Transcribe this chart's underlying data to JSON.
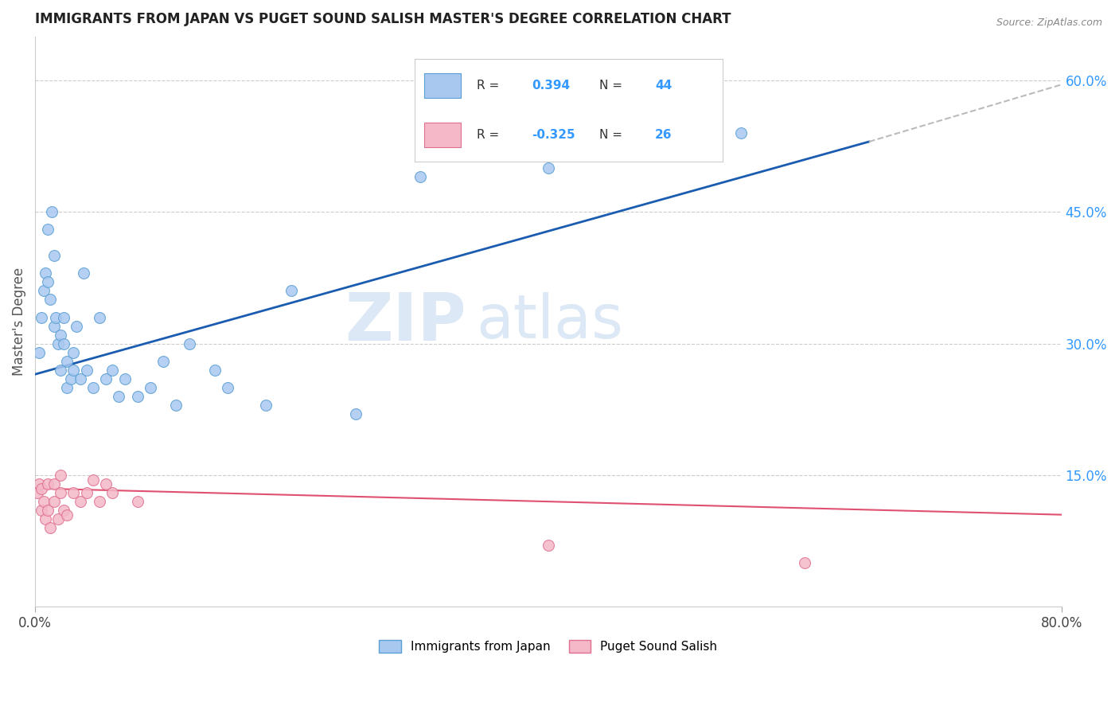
{
  "title": "IMMIGRANTS FROM JAPAN VS PUGET SOUND SALISH MASTER'S DEGREE CORRELATION CHART",
  "source_text": "Source: ZipAtlas.com",
  "ylabel": "Master's Degree",
  "xlim": [
    0.0,
    80.0
  ],
  "ylim": [
    0.0,
    65.0
  ],
  "ytick_right_labels": [
    "15.0%",
    "30.0%",
    "45.0%",
    "60.0%"
  ],
  "ytick_right_values": [
    15.0,
    30.0,
    45.0,
    60.0
  ],
  "blue_color": "#a8c8f0",
  "blue_edge": "#5a9fd4",
  "pink_color": "#f4b8c8",
  "pink_edge": "#e07090",
  "trend_blue_color": "#1a5cb0",
  "trend_pink_color": "#e05070",
  "trend_dashed_color": "#bbbbbb",
  "background_color": "#ffffff",
  "watermark_color": "#dce8f5",
  "legend_label_blue": "Immigrants from Japan",
  "legend_label_pink": "Puget Sound Salish",
  "blue_scatter_x": [
    0.3,
    0.5,
    0.7,
    0.8,
    1.0,
    1.0,
    1.2,
    1.3,
    1.5,
    1.5,
    1.6,
    1.8,
    2.0,
    2.0,
    2.2,
    2.2,
    2.5,
    2.5,
    2.8,
    3.0,
    3.0,
    3.2,
    3.5,
    3.8,
    4.0,
    4.5,
    5.0,
    5.5,
    6.0,
    6.5,
    7.0,
    8.0,
    9.0,
    10.0,
    11.0,
    12.0,
    14.0,
    15.0,
    18.0,
    20.0,
    25.0,
    30.0,
    40.0,
    55.0
  ],
  "blue_scatter_y": [
    29.0,
    33.0,
    36.0,
    38.0,
    43.0,
    37.0,
    35.0,
    45.0,
    40.0,
    32.0,
    33.0,
    30.0,
    31.0,
    27.0,
    30.0,
    33.0,
    28.0,
    25.0,
    26.0,
    29.0,
    27.0,
    32.0,
    26.0,
    38.0,
    27.0,
    25.0,
    33.0,
    26.0,
    27.0,
    24.0,
    26.0,
    24.0,
    25.0,
    28.0,
    23.0,
    30.0,
    27.0,
    25.0,
    23.0,
    36.0,
    22.0,
    49.0,
    50.0,
    54.0
  ],
  "pink_scatter_x": [
    0.2,
    0.3,
    0.5,
    0.5,
    0.7,
    0.8,
    1.0,
    1.0,
    1.2,
    1.5,
    1.5,
    1.8,
    2.0,
    2.0,
    2.2,
    2.5,
    3.0,
    3.5,
    4.0,
    4.5,
    5.0,
    5.5,
    6.0,
    8.0,
    40.0,
    60.0
  ],
  "pink_scatter_y": [
    13.0,
    14.0,
    11.0,
    13.5,
    12.0,
    10.0,
    14.0,
    11.0,
    9.0,
    14.0,
    12.0,
    10.0,
    15.0,
    13.0,
    11.0,
    10.5,
    13.0,
    12.0,
    13.0,
    14.5,
    12.0,
    14.0,
    13.0,
    12.0,
    7.0,
    5.0
  ],
  "blue_trend_x0": 0.0,
  "blue_trend_y0": 26.5,
  "blue_trend_x1": 65.0,
  "blue_trend_y1": 53.0,
  "blue_dash_x0": 65.0,
  "blue_dash_y0": 53.0,
  "blue_dash_x1": 80.0,
  "blue_dash_y1": 59.5,
  "pink_trend_x0": 0.0,
  "pink_trend_y0": 13.5,
  "pink_trend_x1": 80.0,
  "pink_trend_y1": 10.5,
  "marker_size": 100,
  "figsize": [
    14.06,
    8.92
  ],
  "dpi": 100
}
